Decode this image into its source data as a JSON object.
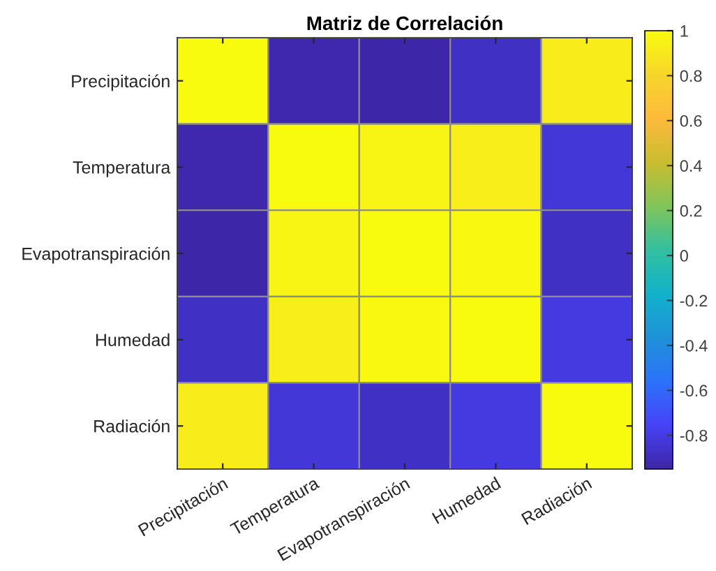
{
  "chart_data": {
    "type": "heatmap",
    "title": "Matriz de Correlación",
    "categories": [
      "Precipitación",
      "Temperatura",
      "Evapotranspiración",
      "Humedad",
      "Radiación"
    ],
    "y_categories": [
      "Precipitación",
      "Temperatura",
      "Evapotranspiración",
      "Humedad",
      "Radiación"
    ],
    "cells": [
      [
        1,
        -0.93,
        -0.95,
        -0.88,
        0.92
      ],
      [
        -0.93,
        1,
        0.96,
        0.93,
        -0.83
      ],
      [
        -0.95,
        0.96,
        1,
        0.98,
        -0.88
      ],
      [
        -0.88,
        0.93,
        0.98,
        1,
        -0.81
      ],
      [
        0.92,
        -0.83,
        -0.88,
        -0.81,
        1
      ]
    ],
    "clim": [
      -0.95,
      1
    ],
    "cticks": [
      -0.8,
      -0.6,
      -0.4,
      -0.2,
      0,
      0.2,
      0.4,
      0.6,
      0.8,
      1
    ]
  }
}
